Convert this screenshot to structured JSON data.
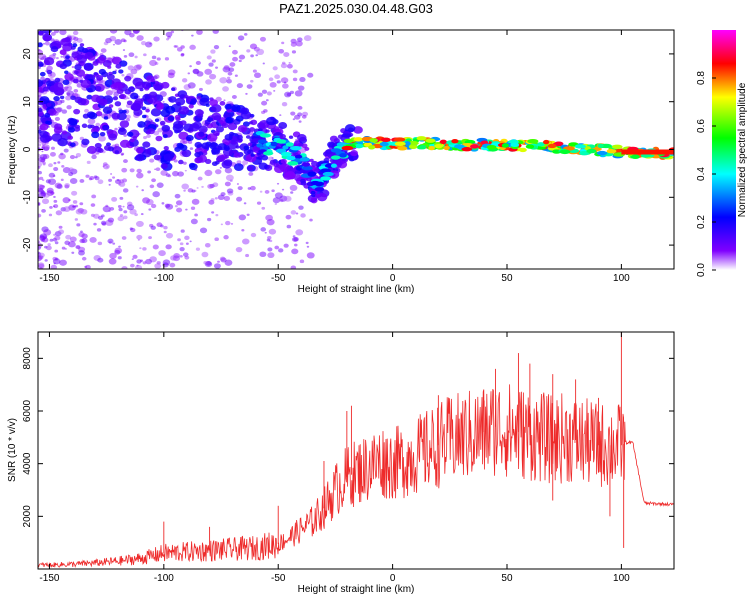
{
  "figure": {
    "title": "PAZ1.2025.030.04.48.G03"
  },
  "chart_data": [
    {
      "type": "heatmap",
      "xlabel": "Height of straight line (km)",
      "ylabel": "Frequency (Hz)",
      "xlim": [
        -155,
        123
      ],
      "ylim": [
        -25,
        25
      ],
      "xticks": [
        -150,
        -100,
        -50,
        0,
        50,
        100
      ],
      "yticks": [
        -20,
        -10,
        0,
        10,
        20
      ],
      "grid": false,
      "colorbar": {
        "label": "Normalized spectral amplitude",
        "range": [
          0.0,
          1.0
        ],
        "ticks": [
          0.0,
          0.2,
          0.4,
          0.6,
          0.8
        ],
        "colors": [
          "#ffffff",
          "#8000ff",
          "#0000ff",
          "#00ffff",
          "#00ff00",
          "#ffff00",
          "#ff0000",
          "#ff00ff"
        ]
      },
      "ridge": [
        {
          "x": -150,
          "y": 14
        },
        {
          "x": -140,
          "y": 12
        },
        {
          "x": -130,
          "y": 10
        },
        {
          "x": -120,
          "y": 9
        },
        {
          "x": -110,
          "y": 7
        },
        {
          "x": -100,
          "y": 5
        },
        {
          "x": -90,
          "y": 4
        },
        {
          "x": -80,
          "y": 3.5
        },
        {
          "x": -70,
          "y": 3
        },
        {
          "x": -60,
          "y": 2
        },
        {
          "x": -50,
          "y": 0.5
        },
        {
          "x": -40,
          "y": -2
        },
        {
          "x": -33,
          "y": -8
        },
        {
          "x": -25,
          "y": -1
        },
        {
          "x": -20,
          "y": 1
        },
        {
          "x": -10,
          "y": 1.5
        },
        {
          "x": 0,
          "y": 1
        },
        {
          "x": 10,
          "y": 1.5
        },
        {
          "x": 25,
          "y": 1
        },
        {
          "x": 50,
          "y": 1
        },
        {
          "x": 75,
          "y": 0.5
        },
        {
          "x": 100,
          "y": -0.5
        },
        {
          "x": 123,
          "y": -1
        }
      ]
    },
    {
      "type": "line",
      "xlabel": "Height of straight line (km)",
      "ylabel": "SNR (10 * v/v)",
      "xlim": [
        -155,
        123
      ],
      "ylim": [
        0,
        9000
      ],
      "xticks": [
        -150,
        -100,
        -50,
        0,
        50,
        100
      ],
      "yticks": [
        2000,
        4000,
        6000,
        8000
      ],
      "grid": false,
      "line_color": "#ee2a2a",
      "series": [
        {
          "x": [
            -155,
            -150,
            -140,
            -130,
            -120,
            -110,
            -100,
            -90,
            -80,
            -70,
            -60,
            -50,
            -45,
            -40,
            -35,
            -30,
            -25,
            -20,
            -15,
            -10,
            -5,
            0,
            5,
            10,
            15,
            20,
            25,
            30,
            35,
            40,
            45,
            50,
            55,
            60,
            65,
            70,
            75,
            80,
            85,
            90,
            95,
            100,
            102,
            105,
            110,
            123
          ],
          "values": [
            150,
            150,
            180,
            230,
            300,
            400,
            600,
            650,
            700,
            750,
            800,
            950,
            1200,
            1500,
            1800,
            2300,
            3000,
            3500,
            3700,
            3900,
            4100,
            4000,
            4100,
            4300,
            4500,
            4700,
            4900,
            5000,
            5100,
            5200,
            5400,
            5300,
            5200,
            5100,
            5000,
            4900,
            5000,
            4900,
            4800,
            4700,
            4700,
            4700,
            4800,
            4800,
            2500,
            2450
          ]
        }
      ],
      "spikes": [
        {
          "x": -100,
          "y": 1800
        },
        {
          "x": -80,
          "y": 1600
        },
        {
          "x": -50,
          "y": 2400
        },
        {
          "x": -30,
          "y": 4100
        },
        {
          "x": -20,
          "y": 6000
        },
        {
          "x": -18,
          "y": 6200
        },
        {
          "x": 20,
          "y": 6600
        },
        {
          "x": 40,
          "y": 6400
        },
        {
          "x": 45,
          "y": 7600
        },
        {
          "x": 55,
          "y": 8200
        },
        {
          "x": 60,
          "y": 7800
        },
        {
          "x": 70,
          "y": 7400
        },
        {
          "x": 80,
          "y": 7200
        },
        {
          "x": 90,
          "y": 6500
        },
        {
          "x": 100,
          "y": 9000
        },
        {
          "x": 101,
          "y": 800
        },
        {
          "x": 95,
          "y": 2000
        },
        {
          "x": 70,
          "y": 2600
        }
      ]
    }
  ]
}
